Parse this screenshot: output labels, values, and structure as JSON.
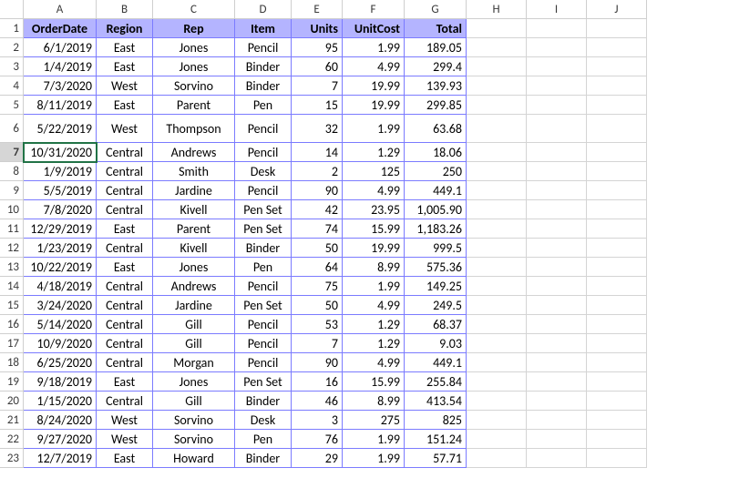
{
  "grid": {
    "col_letters": [
      "A",
      "B",
      "C",
      "D",
      "E",
      "F",
      "G",
      "H",
      "I",
      "J"
    ],
    "row_numbers": [
      "1",
      "2",
      "3",
      "4",
      "5",
      "6",
      "7",
      "8",
      "9",
      "10",
      "11",
      "12",
      "13",
      "14",
      "15",
      "16",
      "17",
      "18",
      "19",
      "20",
      "21",
      "22",
      "23"
    ],
    "header_bg": "#b4b4ff",
    "table_border_color": "#7b7bff",
    "grid_border_color": "#d4d4d4",
    "selected_row_index": 7,
    "selected_col_index": 1,
    "tall_row_index": 6,
    "headers": {
      "A": "OrderDate",
      "B": "Region",
      "C": "Rep",
      "D": "Item",
      "E": "Units",
      "F": "UnitCost",
      "G": "Total"
    },
    "alignment": {
      "A": "right",
      "B": "center",
      "C": "center",
      "D": "center",
      "E": "right",
      "F": "right",
      "G": "right"
    },
    "rows": [
      {
        "A": "6/1/2019",
        "B": "East",
        "C": "Jones",
        "D": "Pencil",
        "E": "95",
        "F": "1.99",
        "G": "189.05"
      },
      {
        "A": "1/4/2019",
        "B": "East",
        "C": "Jones",
        "D": "Binder",
        "E": "60",
        "F": "4.99",
        "G": "299.4"
      },
      {
        "A": "7/3/2020",
        "B": "West",
        "C": "Sorvino",
        "D": "Binder",
        "E": "7",
        "F": "19.99",
        "G": "139.93"
      },
      {
        "A": "8/11/2019",
        "B": "East",
        "C": "Parent",
        "D": "Pen",
        "E": "15",
        "F": "19.99",
        "G": "299.85"
      },
      {
        "A": "5/22/2019",
        "B": "West",
        "C": "Thompson",
        "D": "Pencil",
        "E": "32",
        "F": "1.99",
        "G": "63.68"
      },
      {
        "A": "10/31/2020",
        "B": "Central",
        "C": "Andrews",
        "D": "Pencil",
        "E": "14",
        "F": "1.29",
        "G": "18.06"
      },
      {
        "A": "1/9/2019",
        "B": "Central",
        "C": "Smith",
        "D": "Desk",
        "E": "2",
        "F": "125",
        "G": "250"
      },
      {
        "A": "5/5/2019",
        "B": "Central",
        "C": "Jardine",
        "D": "Pencil",
        "E": "90",
        "F": "4.99",
        "G": "449.1"
      },
      {
        "A": "7/8/2020",
        "B": "Central",
        "C": "Kivell",
        "D": "Pen Set",
        "E": "42",
        "F": "23.95",
        "G": "1,005.90"
      },
      {
        "A": "12/29/2019",
        "B": "East",
        "C": "Parent",
        "D": "Pen Set",
        "E": "74",
        "F": "15.99",
        "G": "1,183.26"
      },
      {
        "A": "1/23/2019",
        "B": "Central",
        "C": "Kivell",
        "D": "Binder",
        "E": "50",
        "F": "19.99",
        "G": "999.5"
      },
      {
        "A": "10/22/2019",
        "B": "East",
        "C": "Jones",
        "D": "Pen",
        "E": "64",
        "F": "8.99",
        "G": "575.36"
      },
      {
        "A": "4/18/2019",
        "B": "Central",
        "C": "Andrews",
        "D": "Pencil",
        "E": "75",
        "F": "1.99",
        "G": "149.25"
      },
      {
        "A": "3/24/2020",
        "B": "Central",
        "C": "Jardine",
        "D": "Pen Set",
        "E": "50",
        "F": "4.99",
        "G": "249.5"
      },
      {
        "A": "5/14/2020",
        "B": "Central",
        "C": "Gill",
        "D": "Pencil",
        "E": "53",
        "F": "1.29",
        "G": "68.37"
      },
      {
        "A": "10/9/2020",
        "B": "Central",
        "C": "Gill",
        "D": "Pencil",
        "E": "7",
        "F": "1.29",
        "G": "9.03"
      },
      {
        "A": "6/25/2020",
        "B": "Central",
        "C": "Morgan",
        "D": "Pencil",
        "E": "90",
        "F": "4.99",
        "G": "449.1"
      },
      {
        "A": "9/18/2019",
        "B": "East",
        "C": "Jones",
        "D": "Pen Set",
        "E": "16",
        "F": "15.99",
        "G": "255.84"
      },
      {
        "A": "1/15/2020",
        "B": "Central",
        "C": "Gill",
        "D": "Binder",
        "E": "46",
        "F": "8.99",
        "G": "413.54"
      },
      {
        "A": "8/24/2020",
        "B": "West",
        "C": "Sorvino",
        "D": "Desk",
        "E": "3",
        "F": "275",
        "G": "825"
      },
      {
        "A": "9/27/2020",
        "B": "West",
        "C": "Sorvino",
        "D": "Pen",
        "E": "76",
        "F": "1.99",
        "G": "151.24"
      },
      {
        "A": "12/7/2019",
        "B": "East",
        "C": "Howard",
        "D": "Binder",
        "E": "29",
        "F": "1.99",
        "G": "57.71"
      }
    ]
  }
}
